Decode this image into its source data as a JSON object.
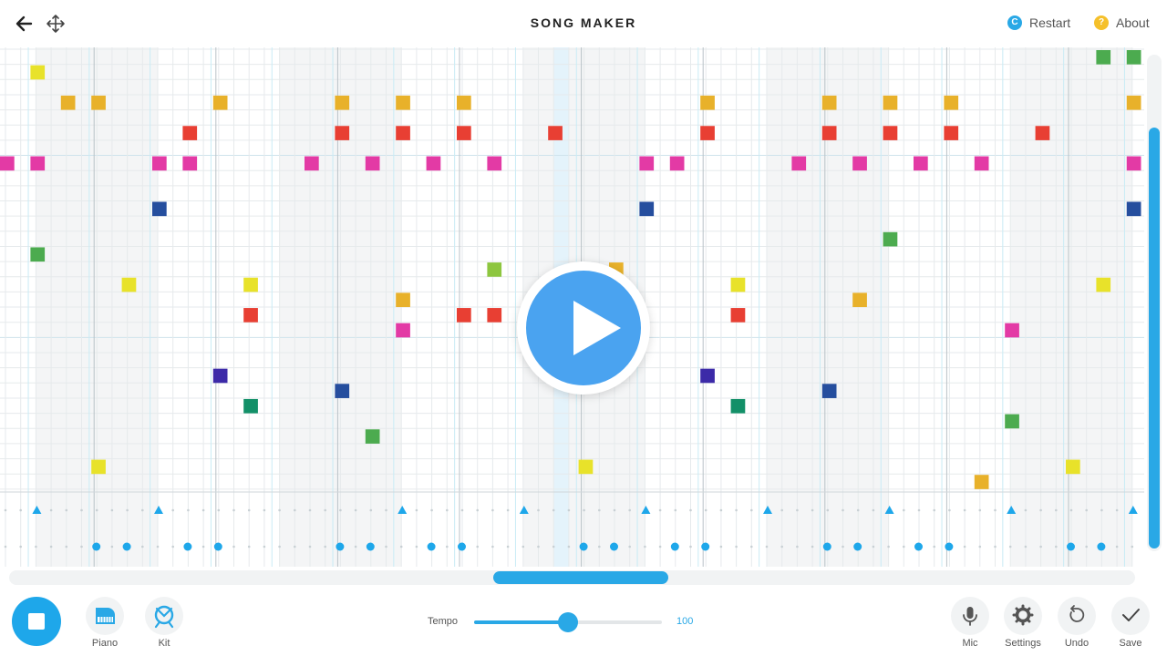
{
  "header": {
    "title": "SONG MAKER",
    "restart_label": "Restart",
    "about_label": "About",
    "restart_glyph": "C",
    "about_glyph": "?"
  },
  "toolbar": {
    "instrument_label": "Piano",
    "percussion_label": "Kit",
    "tempo_label": "Tempo",
    "tempo_value": "100",
    "tempo_fraction": 0.5,
    "mic_label": "Mic",
    "settings_label": "Settings",
    "undo_label": "Undo",
    "save_label": "Save"
  },
  "colors": {
    "accent": "#1ea7ea",
    "grid_line": "#e6eaec",
    "measure_line": "#b9c2c7",
    "beat_line": "#c9ecf5",
    "selected_column": "#e4f3fb",
    "shaded_measure": "#f4f5f6",
    "perc": "#1ea7ea",
    "perc_dot": "#c8d0d4",
    "pitch": [
      "#e8e22a",
      "#e8b12a",
      "#e83f33",
      "#e33aa5",
      "#254e9e",
      "#4cab4f",
      "#3c2aa8",
      "#139068",
      "#8dc63f"
    ]
  },
  "notes": [
    [
      0,
      7,
      3
    ],
    [
      1,
      1,
      0
    ],
    [
      1,
      7,
      3
    ],
    [
      1,
      13,
      5
    ],
    [
      2,
      3,
      1
    ],
    [
      3,
      3,
      1
    ],
    [
      3,
      27,
      0
    ],
    [
      4,
      15,
      0
    ],
    [
      5,
      7,
      3
    ],
    [
      5,
      10,
      4
    ],
    [
      6,
      5,
      2
    ],
    [
      6,
      7,
      3
    ],
    [
      7,
      21,
      6
    ],
    [
      7,
      3,
      1
    ],
    [
      8,
      15,
      0
    ],
    [
      8,
      17,
      2
    ],
    [
      8,
      23,
      7
    ],
    [
      10,
      7,
      3
    ],
    [
      11,
      5,
      2
    ],
    [
      11,
      3,
      1
    ],
    [
      11,
      22,
      4
    ],
    [
      12,
      7,
      3
    ],
    [
      12,
      25,
      5
    ],
    [
      13,
      5,
      2
    ],
    [
      13,
      3,
      1
    ],
    [
      13,
      18,
      3
    ],
    [
      13,
      16,
      1
    ],
    [
      14,
      7,
      3
    ],
    [
      15,
      5,
      2
    ],
    [
      15,
      3,
      1
    ],
    [
      15,
      17,
      2
    ],
    [
      16,
      14,
      8
    ],
    [
      16,
      7,
      3
    ],
    [
      16,
      17,
      2
    ],
    [
      18,
      5,
      2
    ],
    [
      19,
      27,
      0
    ],
    [
      20,
      14,
      1
    ],
    [
      20,
      15,
      0
    ],
    [
      21,
      7,
      3
    ],
    [
      21,
      10,
      4
    ],
    [
      22,
      7,
      3
    ],
    [
      23,
      5,
      2
    ],
    [
      23,
      21,
      6
    ],
    [
      23,
      3,
      1
    ],
    [
      24,
      15,
      0
    ],
    [
      24,
      17,
      2
    ],
    [
      24,
      23,
      7
    ],
    [
      26,
      7,
      3
    ],
    [
      27,
      5,
      2
    ],
    [
      27,
      3,
      1
    ],
    [
      27,
      22,
      4
    ],
    [
      28,
      7,
      3
    ],
    [
      28,
      16,
      1
    ],
    [
      29,
      3,
      1
    ],
    [
      29,
      12,
      5
    ],
    [
      29,
      5,
      2
    ],
    [
      30,
      7,
      3
    ],
    [
      31,
      5,
      2
    ],
    [
      31,
      3,
      1
    ],
    [
      32,
      7,
      3
    ],
    [
      32,
      28,
      1
    ],
    [
      33,
      18,
      3
    ],
    [
      33,
      24,
      5
    ],
    [
      34,
      5,
      2
    ],
    [
      35,
      27,
      0
    ],
    [
      36,
      0,
      5
    ],
    [
      36,
      15,
      0
    ],
    [
      37,
      0,
      5
    ],
    [
      37,
      7,
      3
    ],
    [
      37,
      10,
      4
    ],
    [
      37,
      3,
      1
    ]
  ],
  "perc_high_steps": [
    1,
    5,
    13,
    17,
    21,
    25,
    29,
    33,
    37
  ],
  "perc_low_steps": [
    3,
    4,
    6,
    7,
    11,
    12,
    14,
    15,
    19,
    20,
    22,
    23,
    27,
    28,
    30,
    31,
    35,
    36
  ]
}
